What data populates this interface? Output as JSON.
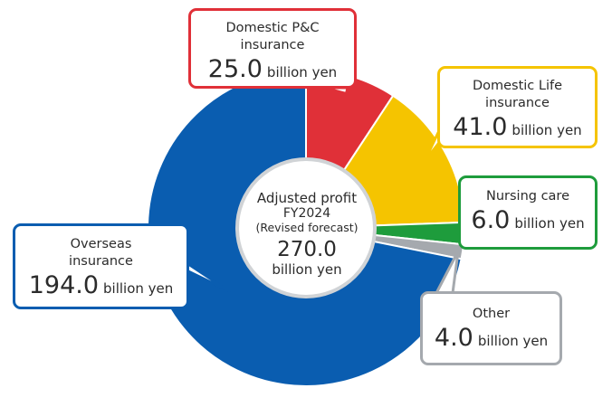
{
  "chart_data": {
    "type": "pie",
    "center": {
      "line1": "Adjusted profit",
      "line2": "FY2024",
      "line3": "(Revised forecast)",
      "total": "270.0",
      "unit": "billion yen"
    },
    "slices": [
      {
        "label": "Domestic P&C insurance",
        "value": 25.0,
        "value_text": "25.0",
        "unit": "billion yen",
        "color": "#e03038"
      },
      {
        "label": "Domestic Life insurance",
        "value": 41.0,
        "value_text": "41.0",
        "unit": "billion yen",
        "color": "#f5c400"
      },
      {
        "label": "Nursing care",
        "value": 6.0,
        "value_text": "6.0",
        "unit": "billion yen",
        "color": "#1e9c3c"
      },
      {
        "label": "Other",
        "value": 4.0,
        "value_text": "4.0",
        "unit": "billion yen",
        "color": "#a5a9ae"
      },
      {
        "label": "Overseas insurance",
        "value": 194.0,
        "value_text": "194.0",
        "unit": "billion yen",
        "color": "#0a5db0"
      }
    ]
  }
}
